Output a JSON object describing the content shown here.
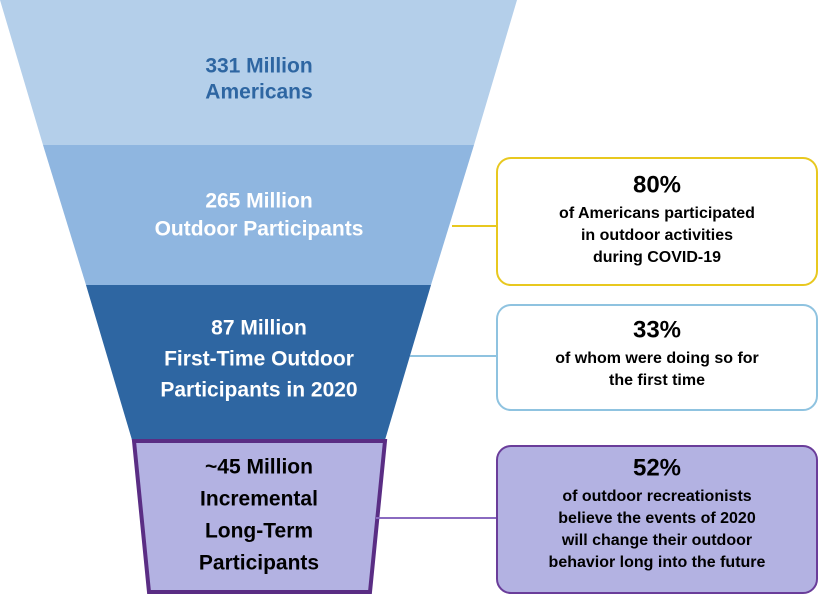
{
  "funnel": [
    {
      "lines": [
        "331 Million",
        "Americans"
      ]
    },
    {
      "lines": [
        "265 Million",
        "Outdoor Participants"
      ]
    },
    {
      "lines": [
        "87 Million",
        "First-Time Outdoor",
        "Participants in 2020"
      ]
    },
    {
      "lines": [
        "~45 Million",
        "Incremental",
        "Long-Term",
        "Participants"
      ]
    }
  ],
  "callouts": [
    {
      "headline": "80%",
      "lines": [
        "of Americans participated",
        "in outdoor activities",
        "during COVID-19"
      ]
    },
    {
      "headline": "33%",
      "lines": [
        "of whom were doing so for",
        "the first time"
      ]
    },
    {
      "headline": "52%",
      "lines": [
        "of outdoor recreationists",
        "believe the events of 2020",
        "will change their outdoor",
        "behavior long into the future"
      ]
    }
  ]
}
